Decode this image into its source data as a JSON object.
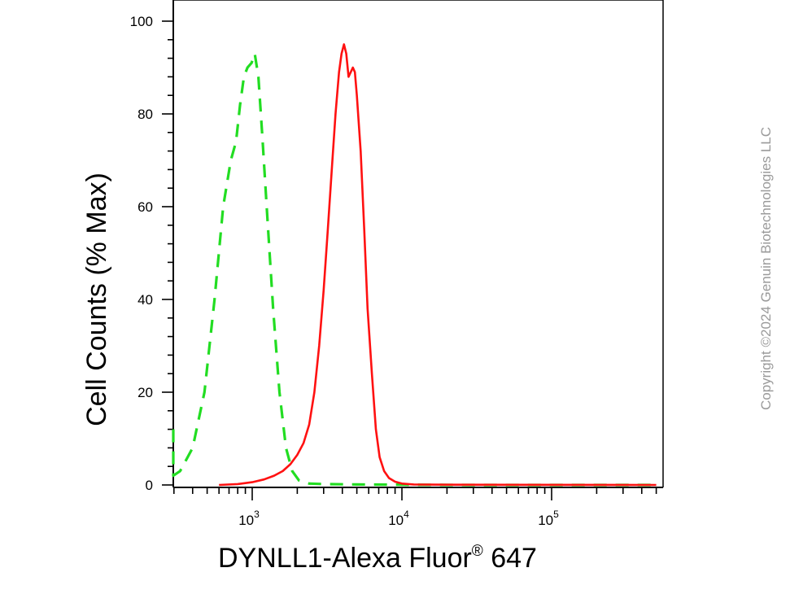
{
  "chart_data": {
    "type": "line",
    "title": "",
    "xlabel": "DYNLL1-Alexa Fluor",
    "xlabel_mark": "®",
    "xlabel_suffix": " 647",
    "ylabel": "Cell Counts (% Max)",
    "x_scale": "log",
    "xlim": [
      270,
      500000
    ],
    "ylim": [
      0,
      102
    ],
    "y_ticks": [
      0,
      20,
      40,
      60,
      80,
      100
    ],
    "x_ticks": [
      {
        "base": "10",
        "exp": "3",
        "value": 1000
      },
      {
        "base": "10",
        "exp": "4",
        "value": 10000
      },
      {
        "base": "10",
        "exp": "5",
        "value": 100000
      }
    ],
    "grid": false,
    "legend": "none",
    "series": [
      {
        "color": "#22dd22",
        "style": "dashed",
        "points": [
          [
            270,
            12
          ],
          [
            290,
            2
          ],
          [
            330,
            3
          ],
          [
            400,
            8
          ],
          [
            480,
            20
          ],
          [
            560,
            40
          ],
          [
            640,
            60
          ],
          [
            720,
            70
          ],
          [
            780,
            74
          ],
          [
            830,
            82
          ],
          [
            880,
            88
          ],
          [
            930,
            90
          ],
          [
            990,
            91
          ],
          [
            1040,
            93
          ],
          [
            1100,
            88
          ],
          [
            1170,
            75
          ],
          [
            1260,
            58
          ],
          [
            1380,
            38
          ],
          [
            1520,
            20
          ],
          [
            1680,
            8
          ],
          [
            1850,
            3
          ],
          [
            2050,
            1
          ],
          [
            2400,
            0.3
          ],
          [
            3000,
            0.2
          ],
          [
            5000,
            0.1
          ],
          [
            10000,
            0.05
          ],
          [
            30000,
            0
          ],
          [
            500000,
            0
          ]
        ]
      },
      {
        "color": "#ff1111",
        "style": "solid",
        "points": [
          [
            600,
            0
          ],
          [
            800,
            0.2
          ],
          [
            1000,
            0.6
          ],
          [
            1200,
            1.2
          ],
          [
            1400,
            2
          ],
          [
            1600,
            3
          ],
          [
            1800,
            4.5
          ],
          [
            2000,
            6.5
          ],
          [
            2200,
            9
          ],
          [
            2400,
            13
          ],
          [
            2600,
            20
          ],
          [
            2800,
            30
          ],
          [
            3000,
            42
          ],
          [
            3200,
            55
          ],
          [
            3400,
            68
          ],
          [
            3600,
            80
          ],
          [
            3800,
            89
          ],
          [
            3950,
            93
          ],
          [
            4100,
            95
          ],
          [
            4250,
            93
          ],
          [
            4400,
            88
          ],
          [
            4550,
            89
          ],
          [
            4700,
            90
          ],
          [
            4850,
            89
          ],
          [
            5000,
            84
          ],
          [
            5300,
            72
          ],
          [
            5600,
            55
          ],
          [
            5900,
            38
          ],
          [
            6300,
            24
          ],
          [
            6700,
            12
          ],
          [
            7100,
            6
          ],
          [
            7600,
            3
          ],
          [
            8200,
            1.5
          ],
          [
            9000,
            0.7
          ],
          [
            10000,
            0.3
          ],
          [
            12000,
            0.1
          ],
          [
            20000,
            0.05
          ],
          [
            500000,
            0
          ]
        ]
      }
    ]
  },
  "watermark": "Copyright ©2024 Genuin Biotechnologies LLC"
}
